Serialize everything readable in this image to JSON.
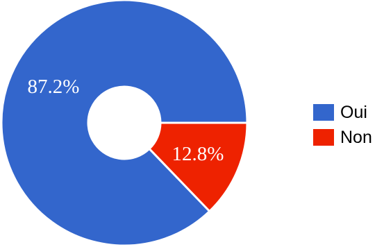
{
  "chart_data": {
    "type": "pie",
    "variant": "donut",
    "categories": [
      "Oui",
      "Non"
    ],
    "values": [
      87.2,
      12.8
    ],
    "value_labels": [
      "87.2%",
      "12.8%"
    ],
    "colors": [
      "#3366cc",
      "#ee2200"
    ],
    "legend": {
      "placement": "right",
      "items": [
        {
          "label": "Oui",
          "color": "#3366cc"
        },
        {
          "label": "Non",
          "color": "#ee2200"
        }
      ]
    }
  }
}
